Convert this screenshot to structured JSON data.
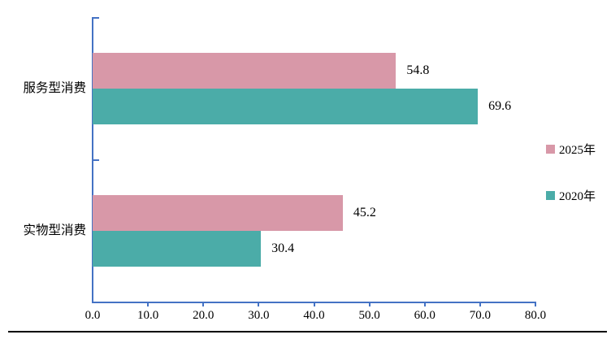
{
  "chart_data": {
    "type": "bar",
    "orientation": "horizontal",
    "title": "",
    "xlabel": "",
    "ylabel": "",
    "categories": [
      "服务型消费",
      "实物型消费"
    ],
    "series": [
      {
        "name": "2025年",
        "color": "#d898a8",
        "values": [
          54.8,
          45.2
        ]
      },
      {
        "name": "2020年",
        "color": "#4baca8",
        "values": [
          69.6,
          30.4
        ]
      }
    ],
    "xlim": [
      0.0,
      80.0
    ],
    "xticks": [
      "0.0",
      "10.0",
      "20.0",
      "30.0",
      "40.0",
      "50.0",
      "60.0",
      "70.0",
      "80.0"
    ],
    "grid": false,
    "legend_position": "right-middle",
    "axis_color": "#4472c4",
    "value_label_decimals": 1
  }
}
